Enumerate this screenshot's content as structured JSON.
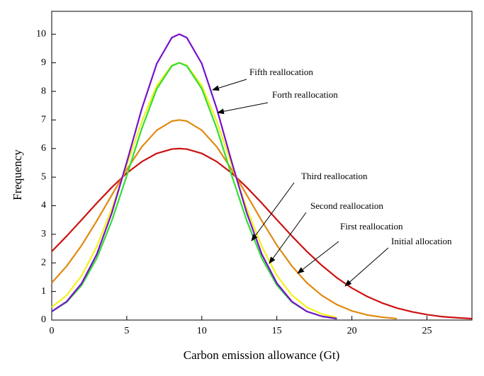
{
  "chart_data": {
    "type": "line",
    "xlabel": "Carbon emission allowance (Gt)",
    "ylabel": "Frequency",
    "xlim": [
      0,
      28
    ],
    "ylim": [
      0,
      10.8
    ],
    "xticks": [
      0,
      5,
      10,
      15,
      20,
      25
    ],
    "yticks": [
      0,
      1,
      2,
      3,
      4,
      5,
      6,
      7,
      8,
      9,
      10
    ],
    "annotations": [
      "Fifth reallocation",
      "Forth reallocation",
      "Third reallocation",
      "Second reallocation",
      "First reallocation",
      "Initial allocation"
    ],
    "series": [
      {
        "color": "#cc1111",
        "x": [
          0,
          1,
          2,
          3,
          4,
          5,
          6,
          7,
          8,
          8.5,
          9,
          10,
          11,
          12,
          13,
          14,
          15,
          16,
          17,
          18,
          19,
          20,
          21,
          22,
          23,
          24,
          25,
          26,
          27,
          28
        ],
        "values": [
          2.4,
          2.94,
          3.51,
          4.09,
          4.64,
          5.14,
          5.54,
          5.83,
          5.98,
          6.0,
          5.98,
          5.83,
          5.54,
          5.14,
          4.64,
          4.09,
          3.51,
          2.94,
          2.4,
          1.91,
          1.48,
          1.12,
          0.83,
          0.6,
          0.42,
          0.29,
          0.19,
          0.12,
          0.08,
          0.05
        ]
      },
      {
        "color": "#e08a10",
        "x": [
          0,
          1,
          2,
          3,
          4,
          5,
          6,
          7,
          8,
          8.5,
          9,
          10,
          11,
          12,
          13,
          14,
          15,
          16,
          17,
          18,
          19,
          20,
          21,
          22,
          23
        ],
        "values": [
          1.3,
          1.89,
          2.62,
          3.47,
          4.37,
          5.26,
          6.06,
          6.64,
          6.96,
          7.0,
          6.96,
          6.64,
          6.06,
          5.26,
          4.37,
          3.47,
          2.62,
          1.89,
          1.3,
          0.86,
          0.54,
          0.32,
          0.18,
          0.1,
          0.05
        ]
      },
      {
        "color": "#f2f21a",
        "x": [
          0,
          1,
          2,
          3,
          4,
          5,
          6,
          7,
          8,
          8.5,
          9,
          10,
          11,
          12,
          13,
          14,
          15,
          16,
          17,
          18,
          19
        ],
        "values": [
          0.45,
          0.87,
          1.56,
          2.57,
          3.89,
          5.42,
          6.95,
          8.2,
          8.91,
          9.0,
          8.91,
          8.2,
          6.95,
          5.42,
          3.89,
          2.57,
          1.56,
          0.87,
          0.45,
          0.21,
          0.09
        ]
      },
      {
        "color": "#33dd33",
        "x": [
          0,
          1,
          2,
          3,
          4,
          5,
          6,
          7,
          8,
          8.5,
          9,
          10,
          11,
          12,
          13,
          14,
          15,
          16,
          17,
          18,
          19
        ],
        "values": [
          0.3,
          0.63,
          1.22,
          2.16,
          3.47,
          5.05,
          6.7,
          8.09,
          8.89,
          9.0,
          8.89,
          8.09,
          6.7,
          5.05,
          3.47,
          2.16,
          1.22,
          0.63,
          0.3,
          0.13,
          0.05
        ]
      },
      {
        "color": "#7711cc",
        "x": [
          0,
          1,
          2,
          3,
          4,
          5,
          6,
          7,
          8,
          8.5,
          9,
          10,
          11,
          12,
          13,
          14,
          15,
          16,
          17,
          18,
          19
        ],
        "values": [
          0.3,
          0.65,
          1.29,
          2.3,
          3.74,
          5.52,
          7.39,
          8.97,
          9.88,
          10.0,
          9.88,
          8.97,
          7.39,
          5.52,
          3.74,
          2.3,
          1.29,
          0.65,
          0.3,
          0.13,
          0.05
        ]
      }
    ]
  }
}
